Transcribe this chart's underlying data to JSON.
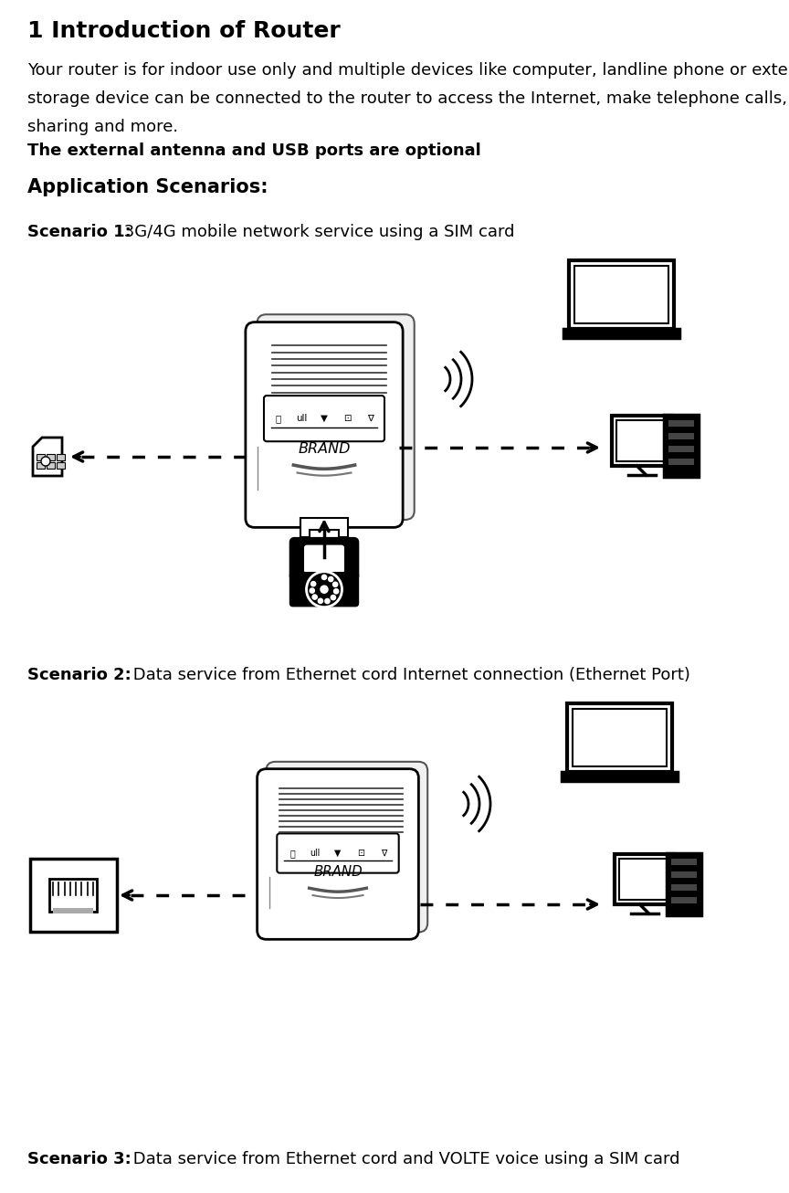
{
  "title": "1 Introduction of Router",
  "body_line1": "Your router is for indoor use only and multiple devices like computer, landline phone or external",
  "body_line2": "storage device can be connected to the router to access the Internet, make telephone calls, files",
  "body_line3": "sharing and more.",
  "bold_note": "The external antenna and USB ports are optional",
  "section_title": "Application Scenarios:",
  "scenario1_bold": "Scenario 1:",
  "scenario1_text": " 3G/4G mobile network service using a SIM card",
  "scenario2_bold": "Scenario 2:",
  "scenario2_text": " Data service from Ethernet cord Internet connection (Ethernet Port)",
  "scenario3_bold": "Scenario 3:",
  "scenario3_text": " Data service from Ethernet cord and VOLTE voice using a SIM card",
  "bg_color": "#ffffff",
  "text_color": "#000000",
  "title_fontsize": 18,
  "body_fontsize": 13,
  "scenario_fontsize": 13,
  "section_fontsize": 15
}
